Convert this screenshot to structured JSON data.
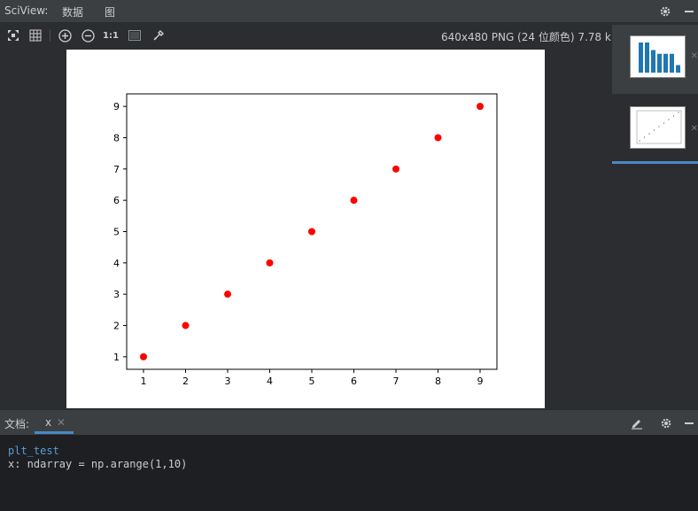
{
  "header": {
    "title": "SciView:",
    "tabs": [
      {
        "label": "数据"
      },
      {
        "label": "图"
      }
    ]
  },
  "toolbar": {
    "zoom_actual": "1:1",
    "image_info": "640x480 PNG (24 位颜色) 7.78 kB"
  },
  "bottom": {
    "label": "文档:",
    "var_tab": "x",
    "console_title": "plt_test",
    "console_line": "x: ndarray = np.arange(1,10)"
  },
  "chart_data": {
    "type": "scatter",
    "x": [
      1,
      2,
      3,
      4,
      5,
      6,
      7,
      8,
      9
    ],
    "y": [
      1,
      2,
      3,
      4,
      5,
      6,
      7,
      8,
      9
    ],
    "color": "#ff0000",
    "xlim": [
      0.6,
      9.4
    ],
    "ylim": [
      0.6,
      9.4
    ],
    "xticks": [
      "1",
      "2",
      "3",
      "4",
      "5",
      "6",
      "7",
      "8",
      "9"
    ],
    "yticks": [
      "1",
      "2",
      "3",
      "4",
      "5",
      "6",
      "7",
      "8",
      "9"
    ],
    "grid": false
  },
  "thumbnails": [
    {
      "kind": "bar",
      "values": [
        8,
        8,
        6,
        5,
        5,
        5,
        2
      ],
      "color": "#1f77b4"
    },
    {
      "kind": "scatter"
    }
  ],
  "colors": {
    "accent": "#4a88c7",
    "panel": "#3c3f41",
    "background": "#2b2d30",
    "console": "#1e1f22"
  }
}
